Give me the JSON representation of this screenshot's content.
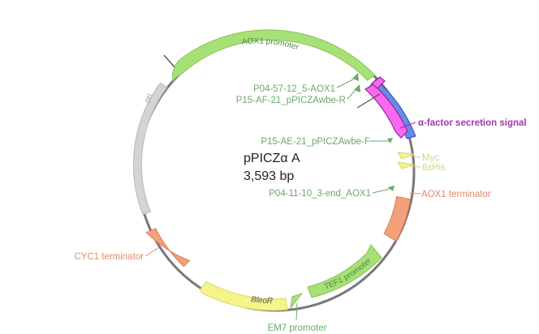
{
  "plasmid": {
    "name": "pPICZα A",
    "length": "3,593 bp"
  },
  "colors": {
    "backbone": "#777777",
    "green": "#a8e078",
    "green_stroke": "#86c456",
    "green_text": "#6aaa6a",
    "primer": "#6aaa6a",
    "pink": "#ff66ee",
    "pink_stroke": "#8a2a9a",
    "magenta_text": "#a03aa8",
    "blue": "#6a8ae8",
    "blue_stroke": "#2a4ac8",
    "yellow": "#f4f48a",
    "yellow_stroke": "#d8d870",
    "yellow_text": "#d8d08a",
    "salmon": "#f4a07a",
    "salmon_stroke": "#e07a50",
    "salmon_text": "#e08a6a",
    "gray": "#d4d4d4",
    "gray_stroke": "#b8b8b8"
  },
  "features": {
    "aox1_promoter": "AOX1 promoter",
    "ori": "ori",
    "alpha_factor": "α-factor secretion signal",
    "myc": "Myc",
    "his": "6xHis",
    "aox1_terminator": "AOX1 terminator",
    "tef1_promoter": "TEF1 promoter",
    "em7_promoter": "EM7 promoter",
    "bleor": "BleoR",
    "cyc1_terminator": "CYC1 terminator"
  },
  "primers": {
    "p04_57": "P04-57-12_5-AOX1",
    "p15_af": "P15-AF-21_pPICZAwbe-R",
    "p15_ae": "P15-AE-21_pPICZAwbe-F",
    "p04_11": "P04-11-10_3-end_AOX1"
  }
}
